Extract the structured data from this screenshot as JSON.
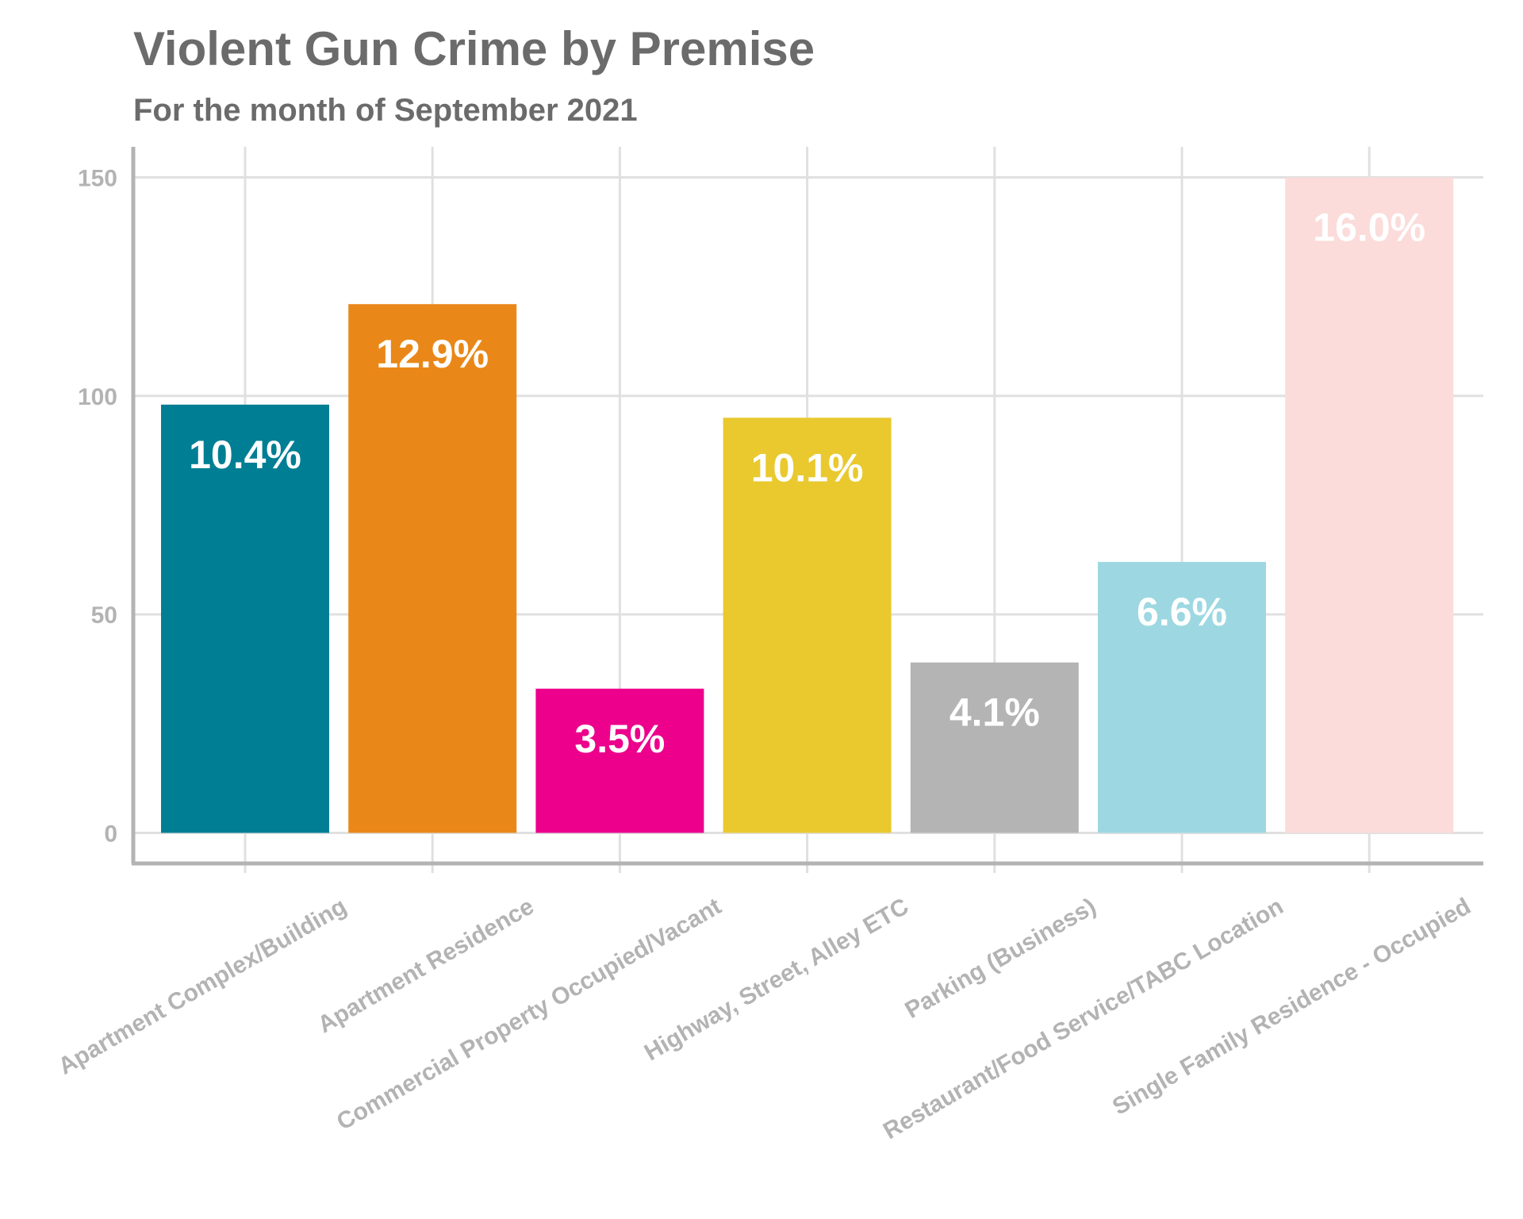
{
  "chart_data": {
    "type": "bar",
    "title": "Violent Gun Crime by Premise",
    "subtitle": "For the month of September 2021",
    "xlabel": "",
    "ylabel": "",
    "ylim": [
      -7,
      157
    ],
    "yticks": [
      0,
      50,
      100,
      150
    ],
    "grid": true,
    "legend": "none",
    "categories": [
      "Apartment Complex/Building",
      "Apartment Residence",
      "Commercial Property Occupied/Vacant",
      "Highway, Street, Alley ETC",
      "Parking (Business)",
      "Restaurant/Food Service/TABC Location",
      "Single Family Residence - Occupied"
    ],
    "values": [
      98,
      121,
      33,
      95,
      39,
      62,
      150
    ],
    "data_labels": [
      "10.4%",
      "12.9%",
      "3.5%",
      "10.1%",
      "4.1%",
      "6.6%",
      "16.0%"
    ],
    "colors": [
      "#007e94",
      "#e98818",
      "#ec008c",
      "#e9c92e",
      "#b4b4b4",
      "#9dd8e2",
      "#fbdcda"
    ]
  }
}
